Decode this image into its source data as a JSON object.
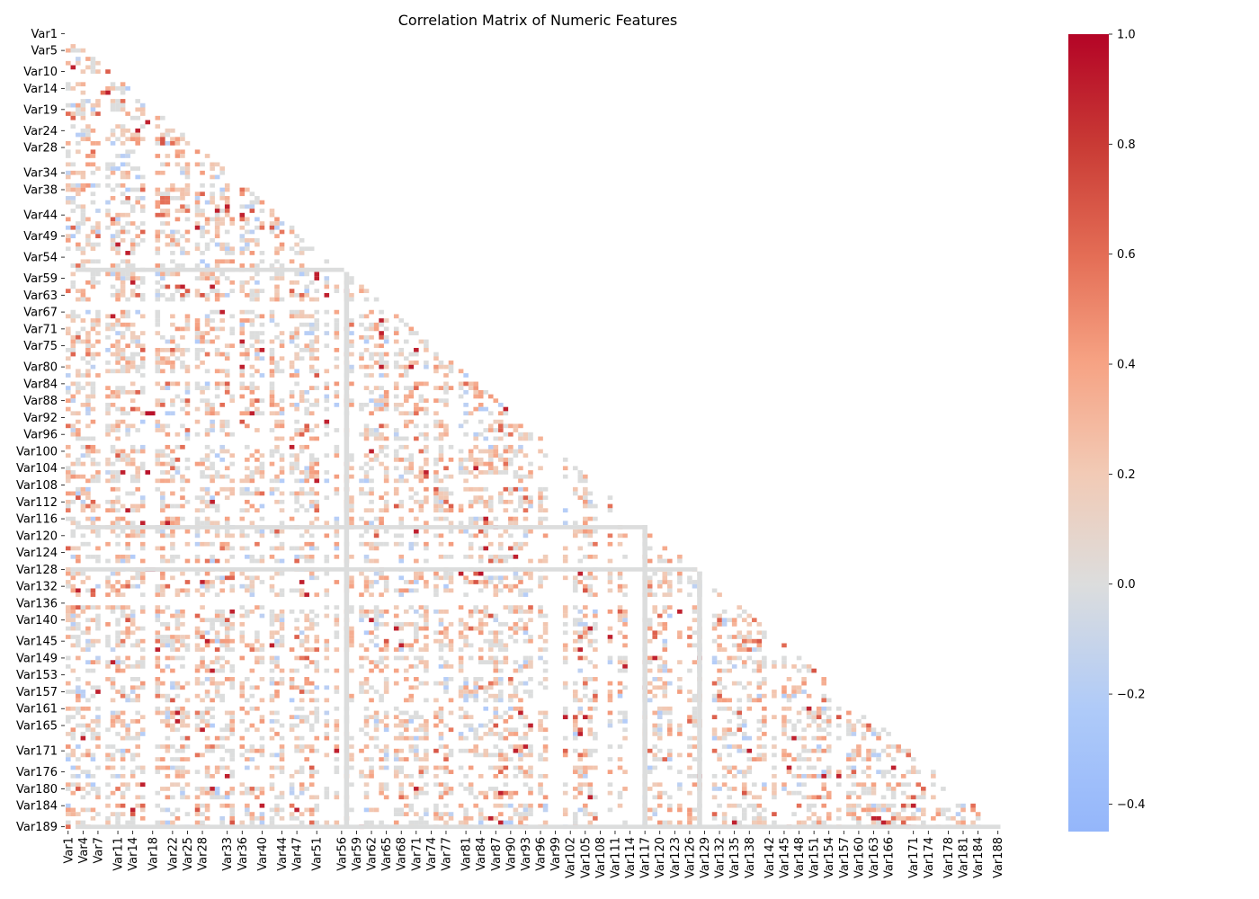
{
  "chart_data": {
    "type": "heatmap",
    "title": "Correlation Matrix of Numeric Features",
    "xlabel": "",
    "ylabel": "",
    "variable_count": 189,
    "variable_prefix": "Var",
    "mask": "upper-triangle",
    "x_tick_labels": [
      "Var1",
      "Var4",
      "Var7",
      "Var11",
      "Var14",
      "Var18",
      "Var22",
      "Var25",
      "Var28",
      "Var33",
      "Var36",
      "Var40",
      "Var44",
      "Var47",
      "Var51",
      "Var56",
      "Var59",
      "Var62",
      "Var65",
      "Var68",
      "Var71",
      "Var74",
      "Var77",
      "Var81",
      "Var84",
      "Var87",
      "Var90",
      "Var93",
      "Var96",
      "Var99",
      "Var102",
      "Var105",
      "Var108",
      "Var111",
      "Var114",
      "Var117",
      "Var120",
      "Var123",
      "Var126",
      "Var129",
      "Var132",
      "Var135",
      "Var138",
      "Var142",
      "Var145",
      "Var148",
      "Var151",
      "Var154",
      "Var157",
      "Var160",
      "Var163",
      "Var166",
      "Var171",
      "Var174",
      "Var178",
      "Var181",
      "Var184",
      "Var188"
    ],
    "y_tick_labels": [
      "Var1",
      "Var5",
      "Var10",
      "Var14",
      "Var19",
      "Var24",
      "Var28",
      "Var34",
      "Var38",
      "Var44",
      "Var49",
      "Var54",
      "Var59",
      "Var63",
      "Var67",
      "Var71",
      "Var75",
      "Var80",
      "Var84",
      "Var88",
      "Var92",
      "Var96",
      "Var100",
      "Var104",
      "Var108",
      "Var112",
      "Var116",
      "Var120",
      "Var124",
      "Var128",
      "Var132",
      "Var136",
      "Var140",
      "Var145",
      "Var149",
      "Var153",
      "Var157",
      "Var161",
      "Var165",
      "Var171",
      "Var176",
      "Var180",
      "Var184",
      "Var189"
    ],
    "colorbar": {
      "colormap": "coolwarm",
      "range": [
        -0.45,
        1.0
      ],
      "ticks": [
        1.0,
        0.8,
        0.6,
        0.4,
        0.2,
        0.0,
        -0.2,
        -0.4
      ],
      "tick_labels": [
        "1.0",
        "0.8",
        "0.6",
        "0.4",
        "0.2",
        "0.0",
        "−0.2",
        "−0.4"
      ]
    },
    "strong_correlations": [
      {
        "row": 8,
        "col": 1,
        "value": 0.9
      },
      {
        "row": 21,
        "col": 16,
        "value": 0.9
      },
      {
        "row": 25,
        "col": 19,
        "value": 0.7
      },
      {
        "row": 26,
        "col": 19,
        "value": 0.7
      },
      {
        "row": 26,
        "col": 21,
        "value": 0.6
      },
      {
        "row": 14,
        "col": 7,
        "value": 0.6
      },
      {
        "row": 61,
        "col": 56,
        "value": 0.9
      },
      {
        "row": 68,
        "col": 63,
        "value": 0.9
      },
      {
        "row": 90,
        "col": 16,
        "value": 0.95
      },
      {
        "row": 90,
        "col": 17,
        "value": 0.95
      },
      {
        "row": 104,
        "col": 16,
        "value": 0.95
      },
      {
        "row": 127,
        "col": 16,
        "value": 1.0
      },
      {
        "row": 127,
        "col": 17,
        "value": 1.0
      },
      {
        "row": 128,
        "col": 83,
        "value": 0.95
      },
      {
        "row": 146,
        "col": 103,
        "value": 0.9
      },
      {
        "row": 155,
        "col": 116,
        "value": 0.9
      },
      {
        "row": 170,
        "col": 90,
        "value": 0.9
      },
      {
        "row": 176,
        "col": 152,
        "value": 0.9
      }
    ],
    "grey_lines": {
      "rows": [
        56,
        117,
        127,
        188
      ],
      "cols": [
        56,
        116,
        127
      ]
    }
  }
}
